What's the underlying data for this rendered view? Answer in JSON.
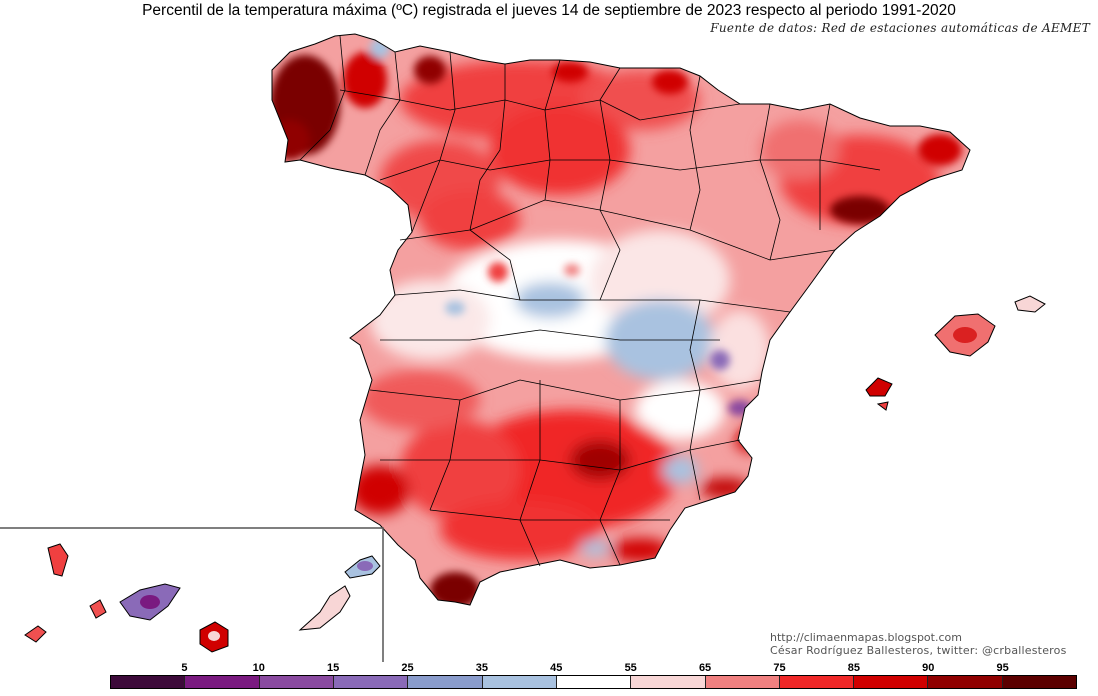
{
  "header": {
    "title": "Percentil de la temperatura máxima (ºC) registrada el jueves 14 de septiembre de 2023 respecto al periodo 1991-2020",
    "source": "Fuente de datos: Red de estaciones automáticas de AEMET"
  },
  "credits": {
    "url": "http://climaenmapas.blogspot.com",
    "author": "César Rodríguez Ballesteros, twitter: @crballesteros"
  },
  "legend": {
    "colors": [
      "#3d0a3a",
      "#7a1a80",
      "#8a4aa0",
      "#8a6ab8",
      "#8a9ccc",
      "#a9c2e0",
      "#ffffff",
      "#f8d6d6",
      "#f08080",
      "#f02828",
      "#d00000",
      "#900000",
      "#5c0000"
    ],
    "ticks": [
      "5",
      "10",
      "15",
      "25",
      "35",
      "45",
      "55",
      "65",
      "75",
      "85",
      "90",
      "95"
    ]
  }
}
